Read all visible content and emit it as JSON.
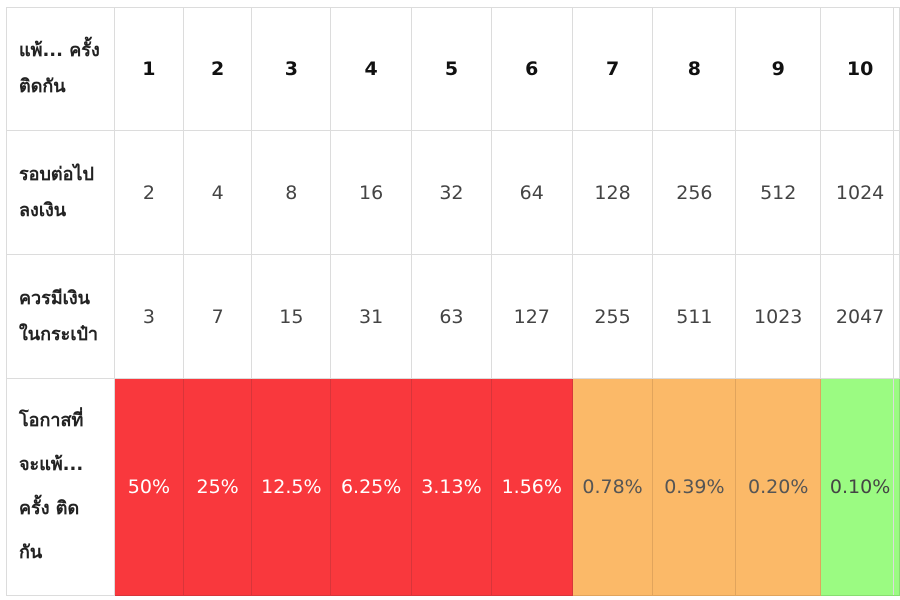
{
  "table": {
    "rows": [
      {
        "label_lines": [
          "แพ้... ครั้ง",
          "ติดกัน"
        ],
        "cells": [
          "1",
          "2",
          "3",
          "4",
          "5",
          "6",
          "7",
          "8",
          "9",
          "10"
        ]
      },
      {
        "label_lines": [
          "รอบต่อไป",
          "ลงเงิน"
        ],
        "cells": [
          "2",
          "4",
          "8",
          "16",
          "32",
          "64",
          "128",
          "256",
          "512",
          "1024"
        ]
      },
      {
        "label_lines": [
          "ควรมีเงิน",
          "ในกระเป๋า"
        ],
        "cells": [
          "3",
          "7",
          "15",
          "31",
          "63",
          "127",
          "255",
          "511",
          "1023",
          "2047"
        ]
      },
      {
        "label_lines": [
          "โอกาสที่",
          "จะแพ้...",
          "ครั้ง ติด",
          "กัน"
        ],
        "cells": [
          "50%",
          "25%",
          "12.5%",
          "6.25%",
          "3.13%",
          "1.56%",
          "0.78%",
          "0.39%",
          "0.20%",
          "0.10%"
        ],
        "cell_colors": [
          "red",
          "red",
          "red",
          "red",
          "red",
          "red",
          "orange",
          "orange",
          "orange",
          "green"
        ]
      }
    ]
  },
  "colors": {
    "red": "#f9383d",
    "orange": "#fbb968",
    "green": "#9bfb82",
    "border": "#dcdcdc"
  }
}
